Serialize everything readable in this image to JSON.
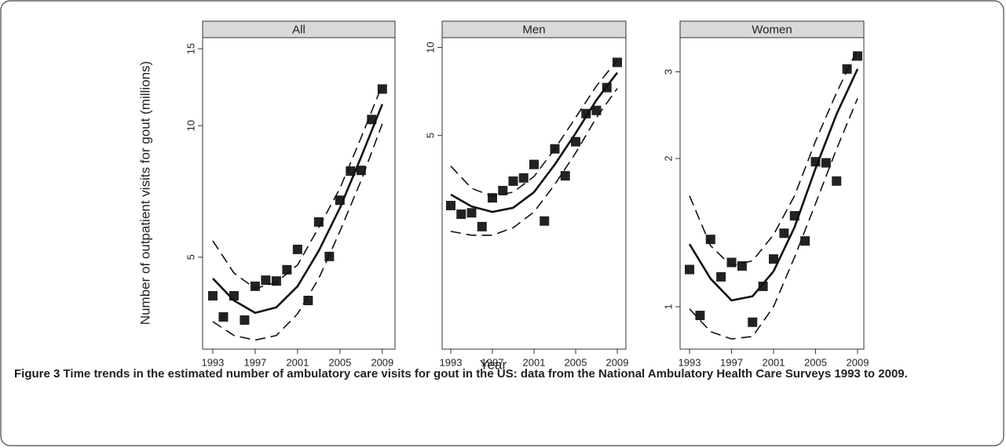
{
  "y_label": "Number of outpatient visits for gout (millions)",
  "x_label": "Year",
  "caption": {
    "label": "Figure 3",
    "text": "Time trends in the estimated number of ambulatory care visits for gout in the US: data from the National Ambulatory Health Care Surveys 1993 to 2009."
  },
  "chart_data": [
    {
      "type": "line",
      "title": "All",
      "log_y": true,
      "xlim": [
        1992.04,
        2010.2
      ],
      "xticks": [
        1993,
        1997,
        2001,
        2005,
        2009
      ],
      "ylim": [
        3.08,
        15.9
      ],
      "yticks": [
        5,
        10,
        15
      ],
      "series": [
        {
          "style": "points",
          "color": "#222222",
          "x": [
            1993,
            1994,
            1995,
            1996,
            1997,
            1998,
            1999,
            2000,
            2001,
            2002,
            2003,
            2004,
            2005,
            2006,
            2007,
            2008,
            2009
          ],
          "values": [
            4.08,
            3.65,
            4.08,
            3.59,
            4.29,
            4.43,
            4.41,
            4.68,
            5.21,
            3.98,
            6.02,
            5.02,
            6.75,
            7.87,
            7.9,
            10.33,
            12.13
          ]
        },
        {
          "style": "solid",
          "color": "#111111",
          "x": [
            1993,
            1995,
            1997,
            1999,
            2001,
            2003,
            2005,
            2007,
            2009
          ],
          "values": [
            4.47,
            3.98,
            3.73,
            3.84,
            4.29,
            5.17,
            6.48,
            8.47,
            11.2
          ]
        },
        {
          "style": "dashed",
          "color": "#111111",
          "x": [
            1993,
            1995,
            1997,
            1999,
            2001,
            2003,
            2005,
            2007,
            2009
          ],
          "values": [
            5.45,
            4.6,
            4.24,
            4.38,
            4.8,
            5.85,
            7.18,
            9.39,
            12.4
          ]
        },
        {
          "style": "dashed",
          "color": "#111111",
          "x": [
            1993,
            1995,
            1997,
            1999,
            2001,
            2003,
            2005,
            2007,
            2009
          ],
          "values": [
            3.56,
            3.31,
            3.23,
            3.31,
            3.71,
            4.47,
            5.73,
            7.49,
            10.1
          ]
        }
      ]
    },
    {
      "type": "line",
      "title": "Men",
      "log_y": true,
      "xlim": [
        1992.17,
        2009.83
      ],
      "xticks": [
        1993,
        1997,
        2001,
        2005,
        2009
      ],
      "ylim": [
        0.93,
        10.8
      ],
      "yticks": [
        5,
        10
      ],
      "series": [
        {
          "style": "points",
          "color": "#222222",
          "x": [
            1993,
            1994,
            1995,
            1996,
            1997,
            1998,
            1999,
            2000,
            2001,
            2002,
            2003,
            2004,
            2005,
            2006,
            2007,
            2008,
            2009
          ],
          "values": [
            2.88,
            2.69,
            2.72,
            2.44,
            3.06,
            3.24,
            3.49,
            3.58,
            3.98,
            2.55,
            4.5,
            3.64,
            4.76,
            5.94,
            6.09,
            7.29,
            8.89
          ]
        },
        {
          "style": "solid",
          "color": "#111111",
          "x": [
            1993,
            1995,
            1997,
            1999,
            2001,
            2003,
            2005,
            2007,
            2009
          ],
          "values": [
            3.14,
            2.86,
            2.74,
            2.83,
            3.2,
            3.98,
            5.09,
            6.61,
            8.2
          ]
        },
        {
          "style": "dashed",
          "color": "#111111",
          "x": [
            1993,
            1995,
            1997,
            1999,
            2001,
            2003,
            2005,
            2007,
            2009
          ],
          "values": [
            3.93,
            3.3,
            3.1,
            3.2,
            3.62,
            4.5,
            5.76,
            7.38,
            9.05
          ]
        },
        {
          "style": "dashed",
          "color": "#111111",
          "x": [
            1993,
            1995,
            1997,
            1999,
            2001,
            2003,
            2005,
            2007,
            2009
          ],
          "values": [
            2.35,
            2.28,
            2.28,
            2.42,
            2.74,
            3.4,
            4.36,
            5.76,
            7.24
          ]
        }
      ]
    },
    {
      "type": "line",
      "title": "Women",
      "log_y": true,
      "xlim": [
        1992.1,
        2009.6
      ],
      "xticks": [
        1993,
        1997,
        2001,
        2005,
        2009
      ],
      "ylim": [
        0.82,
        3.52
      ],
      "yticks": [
        1,
        2,
        3
      ],
      "series": [
        {
          "style": "points",
          "color": "#222222",
          "x": [
            1993,
            1994,
            1995,
            1996,
            1997,
            1998,
            1999,
            2000,
            2001,
            2002,
            2003,
            2004,
            2005,
            2006,
            2007,
            2008,
            2009
          ],
          "values": [
            1.19,
            0.96,
            1.37,
            1.15,
            1.23,
            1.21,
            0.93,
            1.1,
            1.25,
            1.41,
            1.53,
            1.36,
            1.97,
            1.96,
            1.8,
            3.04,
            3.23
          ]
        },
        {
          "style": "solid",
          "color": "#111111",
          "x": [
            1993,
            1995,
            1997,
            1999,
            2001,
            2003,
            2005,
            2007,
            2009
          ],
          "values": [
            1.34,
            1.14,
            1.03,
            1.05,
            1.18,
            1.45,
            1.91,
            2.46,
            3.04
          ]
        },
        {
          "style": "dashed",
          "color": "#111111",
          "x": [
            1993,
            1995,
            1997,
            1999,
            2001,
            2003,
            2005,
            2007,
            2009
          ],
          "values": [
            1.68,
            1.33,
            1.21,
            1.24,
            1.4,
            1.68,
            2.17,
            2.72,
            3.34
          ]
        },
        {
          "style": "dashed",
          "color": "#111111",
          "x": [
            1993,
            1995,
            1997,
            1999,
            2001,
            2003,
            2005,
            2007,
            2009
          ],
          "values": [
            0.99,
            0.89,
            0.86,
            0.87,
            1.0,
            1.26,
            1.62,
            2.09,
            2.65
          ]
        }
      ]
    }
  ]
}
